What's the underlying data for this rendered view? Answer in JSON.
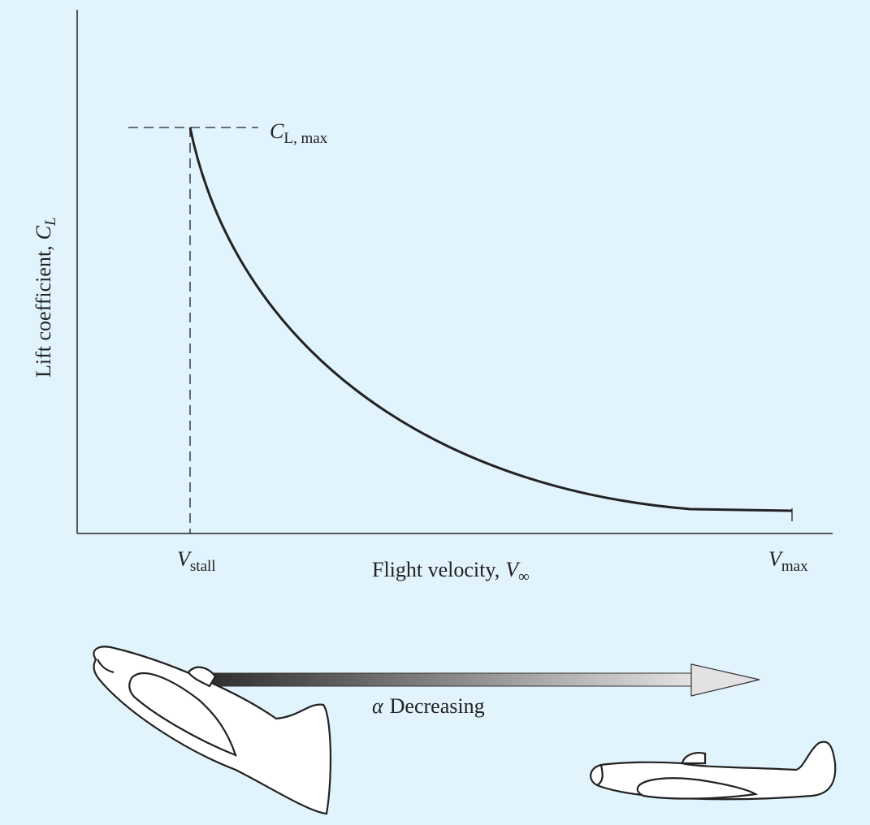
{
  "y_axis_label": {
    "text": "Lift coefficient,",
    "symbol": "C",
    "subscript": "L"
  },
  "x_axis_label": {
    "text": "Flight velocity,",
    "symbol": "V",
    "subscript": "∞"
  },
  "peak_label": {
    "symbol": "C",
    "subscript": "L, max"
  },
  "markers": [
    {
      "symbol": "V",
      "subscript": "stall"
    },
    {
      "symbol": "V",
      "subscript": "max"
    }
  ],
  "arrow_label": {
    "symbol": "α",
    "text": "Decreasing"
  }
}
